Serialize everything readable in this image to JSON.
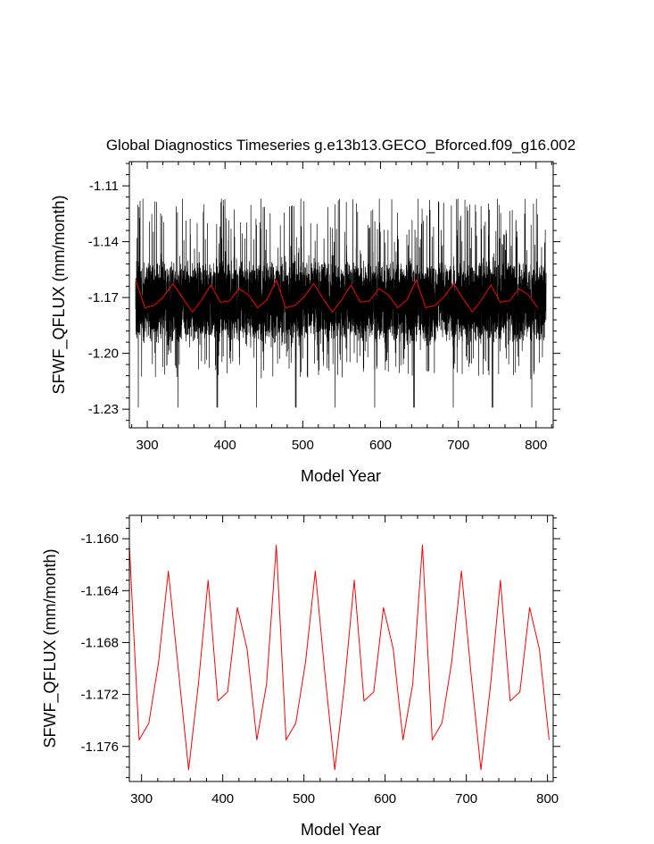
{
  "title": "Global Diagnostics Timeseries g.e13b13.GECO_Bforced.f09_g16.002",
  "chart_data": [
    {
      "type": "line",
      "xlabel": "Model Year",
      "ylabel": "SFWF_QFLUX (mm/month)",
      "xlim": [
        277,
        822
      ],
      "ylim": [
        -1.24,
        -1.097
      ],
      "xticks": [
        300,
        400,
        500,
        600,
        700,
        800
      ],
      "yticks": [
        -1.23,
        -1.2,
        -1.17,
        -1.14,
        -1.11
      ],
      "ytick_labels": [
        "-1.23",
        "-1.20",
        "-1.17",
        "-1.14",
        "-1.11"
      ],
      "grid": false,
      "series": [
        {
          "name": "",
          "color": "#000000",
          "description_source": "monthly",
          "x_start": 285,
          "x_step": 0.0833333,
          "count": 6336,
          "spike_period_years": 50.6,
          "y_min": -1.229,
          "y_max": -1.117
        },
        {
          "name": "",
          "color": "#ff0000",
          "x": [
            285,
            297,
            309,
            321,
            333,
            346,
            358,
            370,
            382,
            394,
            406,
            418,
            430,
            442,
            454,
            466,
            478,
            490,
            502,
            514,
            526,
            538,
            550,
            562,
            574,
            586,
            598,
            610,
            622,
            634,
            646,
            658,
            670,
            682,
            694,
            706,
            718,
            730,
            742,
            754,
            766,
            778,
            790,
            802
          ],
          "y": [
            -1.1605,
            -1.1755,
            -1.1742,
            -1.1695,
            -1.1625,
            -1.1705,
            -1.1778,
            -1.1712,
            -1.1632,
            -1.1725,
            -1.1718,
            -1.1653,
            -1.1685,
            -1.1755,
            -1.1712,
            -1.1605,
            -1.1755,
            -1.1742,
            -1.1695,
            -1.1625,
            -1.1705,
            -1.1778,
            -1.1712,
            -1.1632,
            -1.1725,
            -1.1718,
            -1.1653,
            -1.1685,
            -1.1755,
            -1.1712,
            -1.1605,
            -1.1755,
            -1.1742,
            -1.1695,
            -1.1625,
            -1.1705,
            -1.1778,
            -1.1712,
            -1.1632,
            -1.1725,
            -1.1718,
            -1.1653,
            -1.1685,
            -1.1755
          ]
        }
      ]
    },
    {
      "type": "line",
      "xlabel": "Model Year",
      "ylabel": "SFWF_QFLUX (mm/month)",
      "xlim": [
        285,
        807
      ],
      "ylim": [
        -1.1787,
        -1.1582
      ],
      "xticks": [
        300,
        400,
        500,
        600,
        700,
        800
      ],
      "yticks": [
        -1.176,
        -1.172,
        -1.168,
        -1.164,
        -1.16
      ],
      "ytick_labels": [
        "-1.176",
        "-1.172",
        "-1.168",
        "-1.164",
        "-1.160"
      ],
      "grid": false,
      "series": [
        {
          "name": "",
          "color": "#ff0000",
          "x": [
            285,
            297,
            309,
            321,
            333,
            346,
            358,
            370,
            382,
            394,
            406,
            418,
            430,
            442,
            454,
            466,
            478,
            490,
            502,
            514,
            526,
            538,
            550,
            562,
            574,
            586,
            598,
            610,
            622,
            634,
            646,
            658,
            670,
            682,
            694,
            706,
            718,
            730,
            742,
            754,
            766,
            778,
            790,
            802
          ],
          "y": [
            -1.1605,
            -1.1755,
            -1.1742,
            -1.1695,
            -1.1625,
            -1.1705,
            -1.1778,
            -1.1712,
            -1.1632,
            -1.1725,
            -1.1718,
            -1.1653,
            -1.1685,
            -1.1755,
            -1.1712,
            -1.1605,
            -1.1755,
            -1.1742,
            -1.1695,
            -1.1625,
            -1.1705,
            -1.1778,
            -1.1712,
            -1.1632,
            -1.1725,
            -1.1718,
            -1.1653,
            -1.1685,
            -1.1755,
            -1.1712,
            -1.1605,
            -1.1755,
            -1.1742,
            -1.1695,
            -1.1625,
            -1.1705,
            -1.1778,
            -1.1712,
            -1.1632,
            -1.1725,
            -1.1718,
            -1.1653,
            -1.1685,
            -1.1755
          ]
        }
      ]
    }
  ]
}
